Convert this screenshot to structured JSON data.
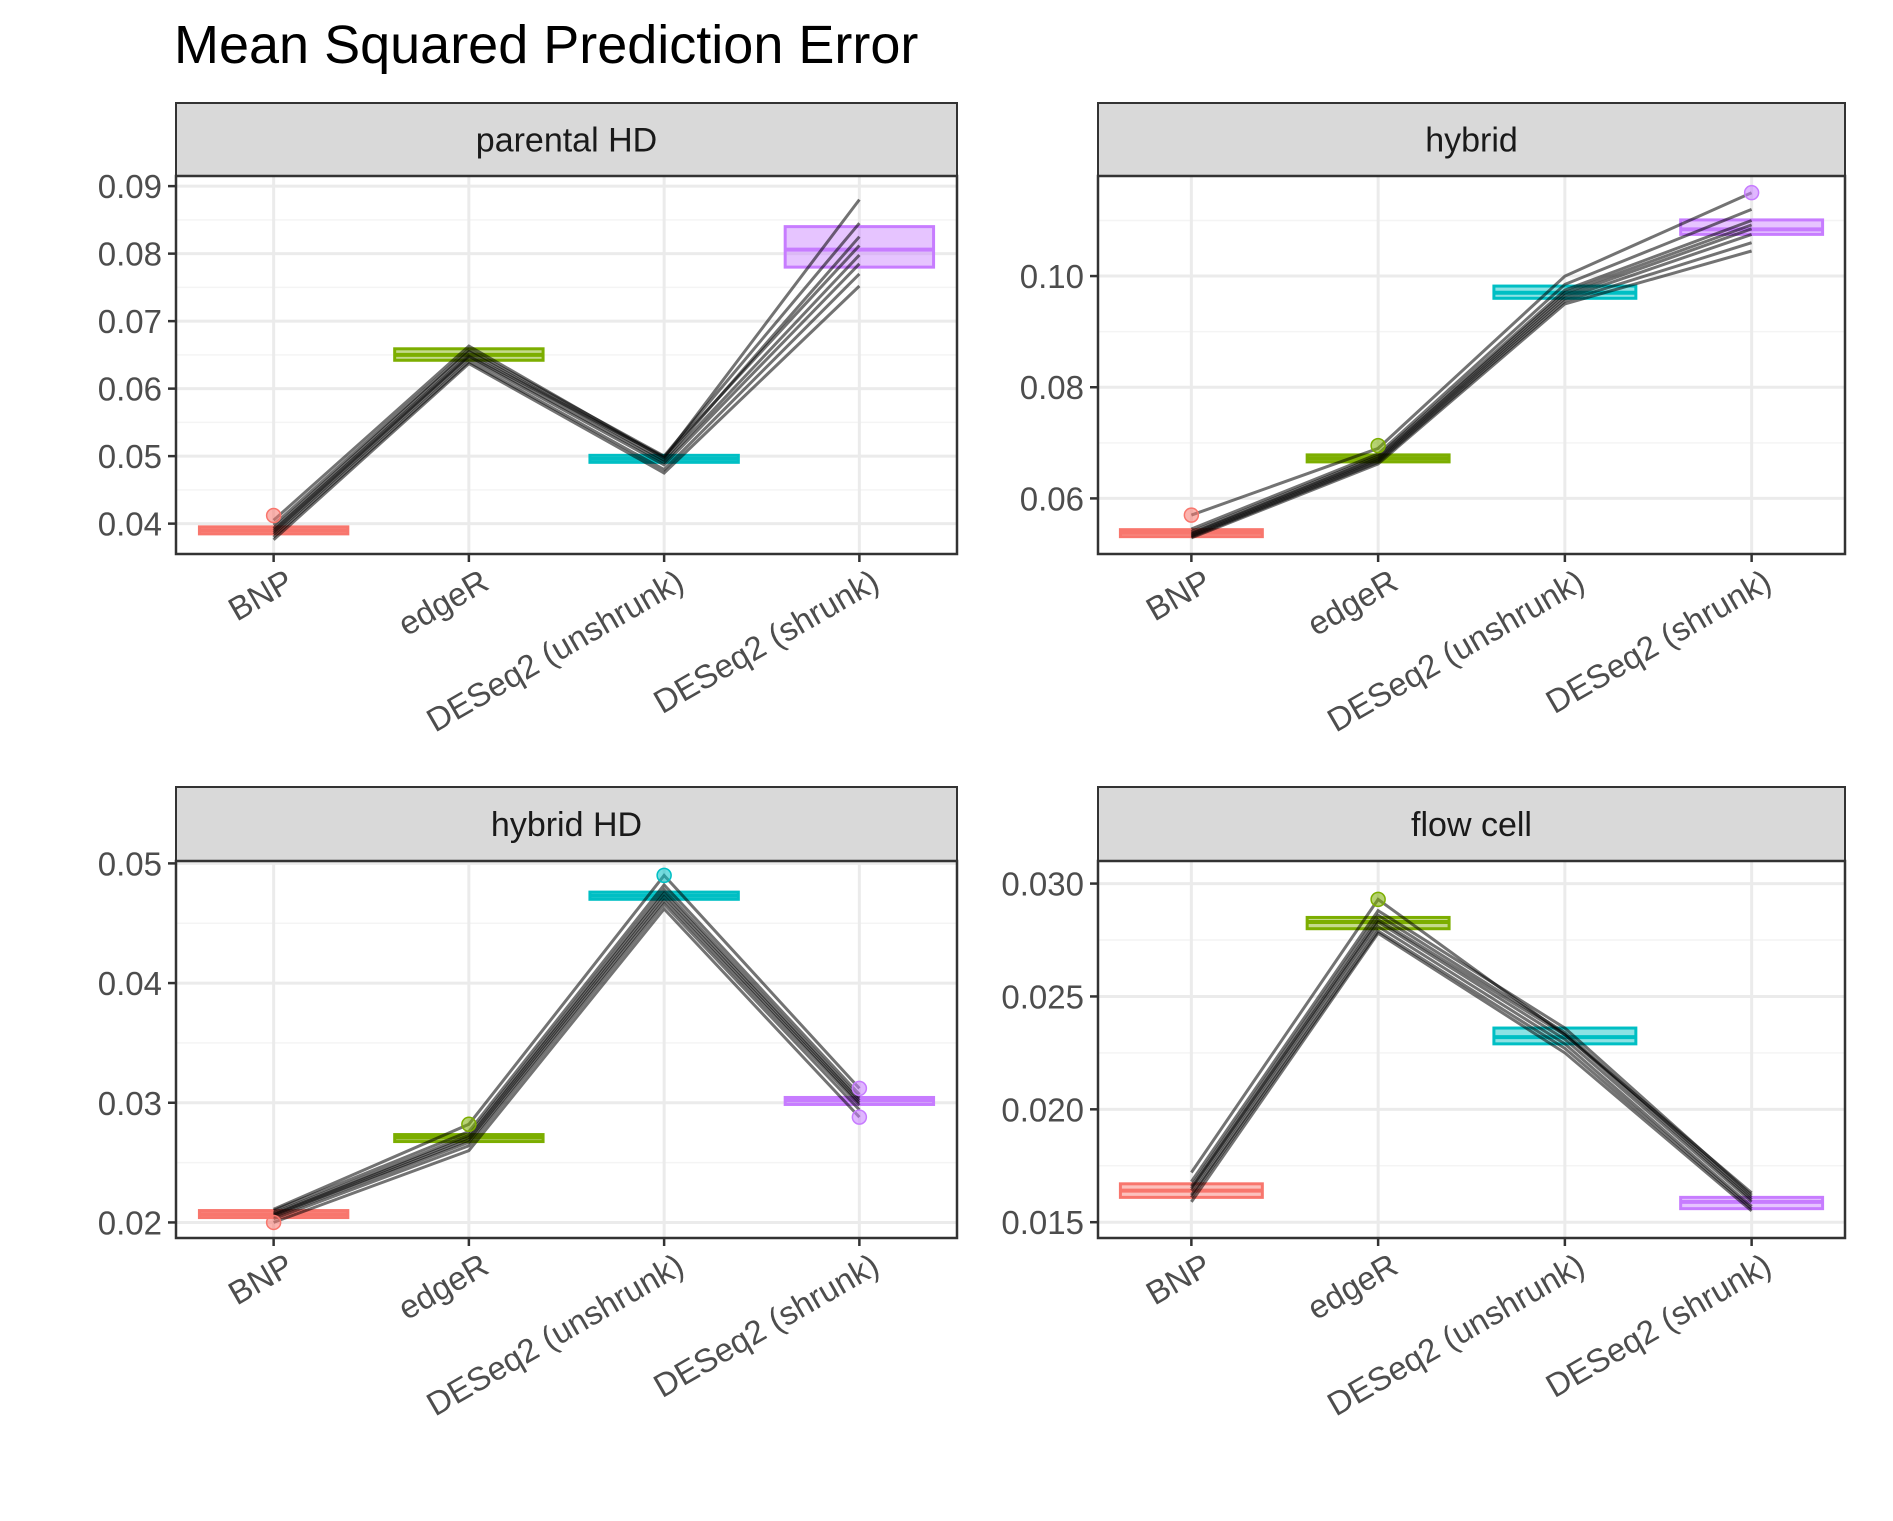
{
  "title": "Mean Squared Prediction Error",
  "colors": {
    "BNP": "#F8766D",
    "edgeR": "#7CAE00",
    "DESeq2 (unshrunk)": "#00BFC4",
    "DESeq2 (shrunk)": "#C77CFF",
    "lines": "#000000",
    "strip": "#D9D9D9",
    "grid": "#EBEBEB"
  },
  "chart_data": [
    {
      "type": "box-with-paired-lines",
      "facet": "parental HD",
      "categories": [
        "BNP",
        "edgeR",
        "DESeq2 (unshrunk)",
        "DESeq2 (shrunk)"
      ],
      "ylim": [
        0.0355,
        0.0915
      ],
      "yticks": [
        0.04,
        0.05,
        0.06,
        0.07,
        0.08,
        0.09
      ],
      "ytick_labels": [
        "0.04",
        "0.05",
        "0.06",
        "0.07",
        "0.08",
        "0.09"
      ],
      "boxes": [
        {
          "q1": 0.0386,
          "median": 0.039,
          "q3": 0.0394
        },
        {
          "q1": 0.0642,
          "median": 0.065,
          "q3": 0.0659
        },
        {
          "q1": 0.0491,
          "median": 0.0496,
          "q3": 0.0501
        },
        {
          "q1": 0.078,
          "median": 0.0806,
          "q3": 0.084
        }
      ],
      "outliers": [
        {
          "category": "BNP",
          "value": 0.0412
        }
      ],
      "series": [
        {
          "values": [
            0.0405,
            0.0663,
            0.0497,
            0.088
          ]
        },
        {
          "values": [
            0.0398,
            0.0658,
            0.05,
            0.0845
          ]
        },
        {
          "values": [
            0.0393,
            0.0655,
            0.0494,
            0.0825
          ]
        },
        {
          "values": [
            0.039,
            0.065,
            0.0499,
            0.0812
          ]
        },
        {
          "values": [
            0.0387,
            0.0648,
            0.0491,
            0.0798
          ]
        },
        {
          "values": [
            0.0384,
            0.0645,
            0.0487,
            0.0785
          ]
        },
        {
          "values": [
            0.038,
            0.064,
            0.048,
            0.077
          ]
        },
        {
          "values": [
            0.0376,
            0.0637,
            0.0475,
            0.0752
          ]
        }
      ]
    },
    {
      "type": "box-with-paired-lines",
      "facet": "hybrid",
      "categories": [
        "BNP",
        "edgeR",
        "DESeq2 (unshrunk)",
        "DESeq2 (shrunk)"
      ],
      "ylim": [
        0.05,
        0.118
      ],
      "yticks": [
        0.06,
        0.08,
        0.1
      ],
      "ytick_labels": [
        "0.06",
        "0.08",
        "0.10"
      ],
      "boxes": [
        {
          "q1": 0.0534,
          "median": 0.0538,
          "q3": 0.0541
        },
        {
          "q1": 0.0668,
          "median": 0.0672,
          "q3": 0.0676
        },
        {
          "q1": 0.096,
          "median": 0.097,
          "q3": 0.0982
        },
        {
          "q1": 0.1075,
          "median": 0.1084,
          "q3": 0.1101
        }
      ],
      "outliers": [
        {
          "category": "BNP",
          "value": 0.057
        },
        {
          "category": "edgeR",
          "value": 0.0695
        },
        {
          "category": "DESeq2 (shrunk)",
          "value": 0.115
        }
      ],
      "series": [
        {
          "values": [
            0.057,
            0.069,
            0.1,
            0.115
          ]
        },
        {
          "values": [
            0.0545,
            0.068,
            0.0985,
            0.112
          ]
        },
        {
          "values": [
            0.054,
            0.0676,
            0.0975,
            0.11
          ]
        },
        {
          "values": [
            0.0537,
            0.0673,
            0.097,
            0.1092
          ]
        },
        {
          "values": [
            0.0535,
            0.067,
            0.0965,
            0.1085
          ]
        },
        {
          "values": [
            0.0533,
            0.0668,
            0.096,
            0.1075
          ]
        },
        {
          "values": [
            0.0531,
            0.0665,
            0.0955,
            0.106
          ]
        },
        {
          "values": [
            0.0529,
            0.0662,
            0.095,
            0.1045
          ]
        }
      ]
    },
    {
      "type": "box-with-paired-lines",
      "facet": "hybrid HD",
      "categories": [
        "BNP",
        "edgeR",
        "DESeq2 (unshrunk)",
        "DESeq2 (shrunk)"
      ],
      "ylim": [
        0.0187,
        0.0502
      ],
      "yticks": [
        0.02,
        0.03,
        0.04,
        0.05
      ],
      "ytick_labels": [
        "0.02",
        "0.03",
        "0.04",
        "0.05"
      ],
      "boxes": [
        {
          "q1": 0.0205,
          "median": 0.0207,
          "q3": 0.0209
        },
        {
          "q1": 0.0268,
          "median": 0.0271,
          "q3": 0.0273
        },
        {
          "q1": 0.047,
          "median": 0.0473,
          "q3": 0.0476
        },
        {
          "q1": 0.0299,
          "median": 0.0302,
          "q3": 0.0304
        }
      ],
      "outliers": [
        {
          "category": "BNP",
          "value": 0.02
        },
        {
          "category": "edgeR",
          "value": 0.0282
        },
        {
          "category": "DESeq2 (unshrunk)",
          "value": 0.049
        },
        {
          "category": "DESeq2 (shrunk)",
          "value": 0.0312
        },
        {
          "category": "DESeq2 (shrunk)",
          "value": 0.0288
        }
      ],
      "series": [
        {
          "values": [
            0.0211,
            0.0282,
            0.049,
            0.0312
          ]
        },
        {
          "values": [
            0.021,
            0.0276,
            0.0482,
            0.0307
          ]
        },
        {
          "values": [
            0.0208,
            0.0273,
            0.0478,
            0.0304
          ]
        },
        {
          "values": [
            0.0207,
            0.0271,
            0.0475,
            0.0302
          ]
        },
        {
          "values": [
            0.0206,
            0.0269,
            0.0472,
            0.03
          ]
        },
        {
          "values": [
            0.0205,
            0.0267,
            0.0469,
            0.0298
          ]
        },
        {
          "values": [
            0.0203,
            0.0264,
            0.0466,
            0.0294
          ]
        },
        {
          "values": [
            0.02,
            0.026,
            0.0462,
            0.0288
          ]
        }
      ]
    },
    {
      "type": "box-with-paired-lines",
      "facet": "flow cell",
      "categories": [
        "BNP",
        "edgeR",
        "DESeq2 (unshrunk)",
        "DESeq2 (shrunk)"
      ],
      "ylim": [
        0.0143,
        0.031
      ],
      "yticks": [
        0.015,
        0.02,
        0.025,
        0.03
      ],
      "ytick_labels": [
        "0.015",
        "0.020",
        "0.025",
        "0.030"
      ],
      "boxes": [
        {
          "q1": 0.0161,
          "median": 0.0164,
          "q3": 0.0167
        },
        {
          "q1": 0.028,
          "median": 0.0283,
          "q3": 0.0285
        },
        {
          "q1": 0.0229,
          "median": 0.0232,
          "q3": 0.0236
        },
        {
          "q1": 0.0156,
          "median": 0.0159,
          "q3": 0.0161
        }
      ],
      "outliers": [
        {
          "category": "edgeR",
          "value": 0.0293
        }
      ],
      "series": [
        {
          "values": [
            0.0172,
            0.0293,
            0.0233,
            0.0163
          ]
        },
        {
          "values": [
            0.0168,
            0.0288,
            0.0236,
            0.0162
          ]
        },
        {
          "values": [
            0.0166,
            0.0286,
            0.0234,
            0.0161
          ]
        },
        {
          "values": [
            0.0165,
            0.0284,
            0.0233,
            0.016
          ]
        },
        {
          "values": [
            0.0164,
            0.0283,
            0.0231,
            0.0159
          ]
        },
        {
          "values": [
            0.0162,
            0.0281,
            0.0229,
            0.0157
          ]
        },
        {
          "values": [
            0.0161,
            0.0279,
            0.0227,
            0.0156
          ]
        },
        {
          "values": [
            0.0159,
            0.0278,
            0.0225,
            0.0155
          ]
        }
      ]
    }
  ]
}
